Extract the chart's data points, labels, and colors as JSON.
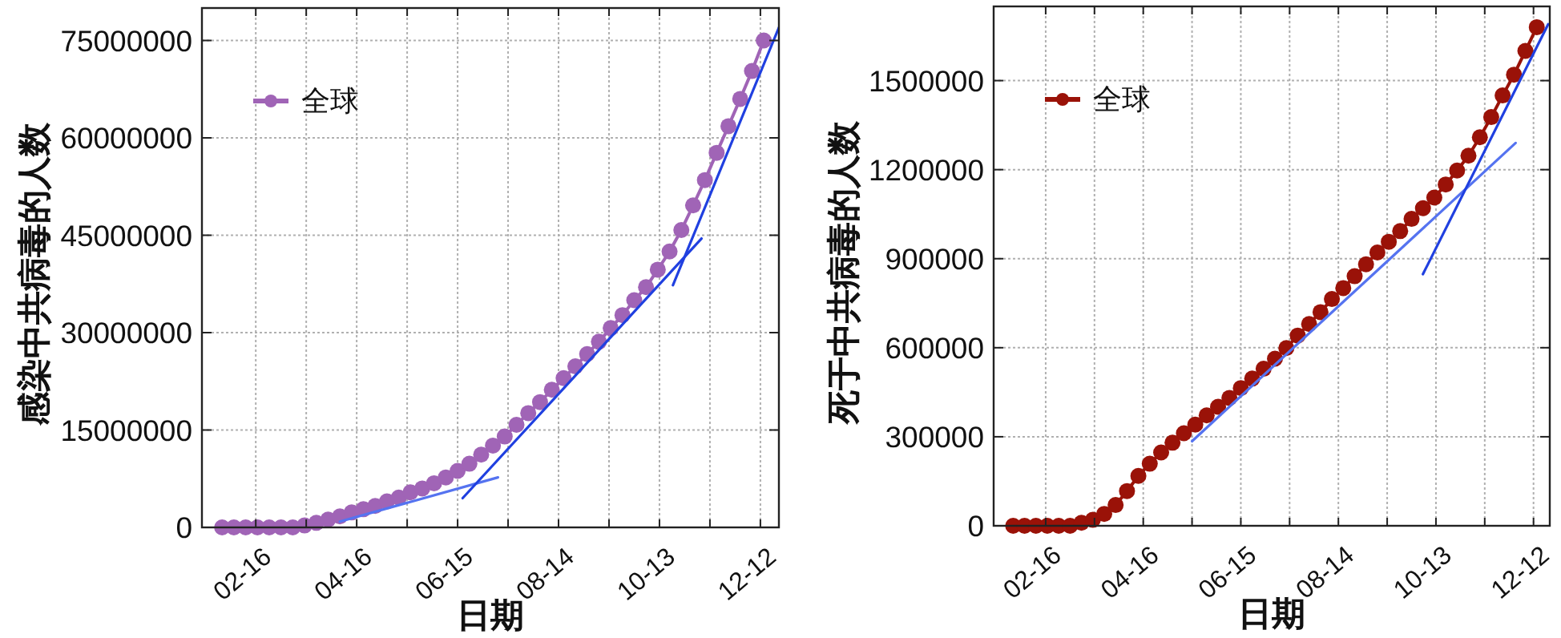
{
  "chart_data": [
    {
      "type": "line",
      "xlabel": "日期",
      "ylabel": "感染中共病毒的人数",
      "xlim": [
        "--01-15",
        "--12-23"
      ],
      "ylim": [
        0,
        80000000
      ],
      "xticks": [
        {
          "value": "--02-16",
          "label": "02-16"
        },
        {
          "value": "--03-17",
          "label": null
        },
        {
          "value": "--04-16",
          "label": "04-16"
        },
        {
          "value": "--05-16",
          "label": null
        },
        {
          "value": "--06-15",
          "label": "06-15"
        },
        {
          "value": "--07-15",
          "label": null
        },
        {
          "value": "--08-14",
          "label": "08-14"
        },
        {
          "value": "--09-13",
          "label": null
        },
        {
          "value": "--10-13",
          "label": "10-13"
        },
        {
          "value": "--11-12",
          "label": null
        },
        {
          "value": "--12-12",
          "label": "12-12"
        }
      ],
      "yticks": [
        0,
        15000000,
        30000000,
        45000000,
        60000000,
        75000000
      ],
      "grid": true,
      "legend": "top left",
      "line_style": "solid",
      "series": [
        {
          "name": "全球",
          "color": "#a064b6",
          "marker": "circle",
          "x": [
            "--01-27",
            "--02-03",
            "--02-10",
            "--02-17",
            "--02-24",
            "--03-02",
            "--03-09",
            "--03-16",
            "--03-23",
            "--03-30",
            "--04-06",
            "--04-13",
            "--04-20",
            "--04-27",
            "--05-04",
            "--05-11",
            "--05-18",
            "--05-25",
            "--06-01",
            "--06-08",
            "--06-15",
            "--06-22",
            "--06-29",
            "--07-06",
            "--07-13",
            "--07-20",
            "--07-27",
            "--08-03",
            "--08-10",
            "--08-17",
            "--08-24",
            "--08-31",
            "--09-07",
            "--09-14",
            "--09-21",
            "--09-28",
            "--10-05",
            "--10-12",
            "--10-19",
            "--10-26",
            "--11-02",
            "--11-09",
            "--11-16",
            "--11-23",
            "--11-30",
            "--12-07",
            "--12-14"
          ],
          "values": [
            0,
            0,
            0,
            0,
            0,
            0,
            0,
            300000,
            700000,
            1200000,
            1700000,
            2300000,
            2800000,
            3300000,
            4000000,
            4600000,
            5400000,
            6000000,
            6800000,
            7700000,
            8700000,
            9800000,
            11200000,
            12600000,
            14000000,
            15800000,
            17600000,
            19300000,
            21200000,
            23000000,
            24800000,
            26700000,
            28600000,
            30700000,
            32700000,
            35000000,
            37000000,
            39700000,
            42500000,
            45800000,
            49600000,
            53500000,
            57700000,
            61800000,
            66000000,
            70300000,
            75000000
          ]
        },
        {
          "color": "#5573f0",
          "marker": "none",
          "x": [
            "--04-06",
            "--07-09"
          ],
          "values": [
            900000,
            7700000
          ]
        },
        {
          "color": "#2040e0",
          "marker": "none",
          "x": [
            "--06-18",
            "--11-07"
          ],
          "values": [
            4500000,
            44500000
          ]
        },
        {
          "color": "#2040e0",
          "marker": "none",
          "x": [
            "--10-21",
            "--12-23"
          ],
          "values": [
            37300000,
            77000000
          ]
        }
      ]
    },
    {
      "type": "line",
      "xlabel": "日期",
      "ylabel": "死于中共病毒的人数",
      "xlim": [
        "--01-15",
        "--12-22"
      ],
      "ylim": [
        0,
        1750000
      ],
      "xticks": [
        {
          "value": "--02-16",
          "label": "02-16"
        },
        {
          "value": "--03-17",
          "label": null
        },
        {
          "value": "--04-16",
          "label": "04-16"
        },
        {
          "value": "--05-16",
          "label": null
        },
        {
          "value": "--06-15",
          "label": "06-15"
        },
        {
          "value": "--07-15",
          "label": null
        },
        {
          "value": "--08-14",
          "label": "08-14"
        },
        {
          "value": "--09-13",
          "label": null
        },
        {
          "value": "--10-13",
          "label": "10-13"
        },
        {
          "value": "--11-12",
          "label": null
        },
        {
          "value": "--12-12",
          "label": "12-12"
        }
      ],
      "yticks": [
        0,
        300000,
        600000,
        900000,
        1200000,
        1500000
      ],
      "grid": true,
      "legend": "top left",
      "line_style": "solid",
      "series": [
        {
          "name": "全球",
          "color": "#9a1208",
          "marker": "circle",
          "x": [
            "--01-27",
            "--02-03",
            "--02-10",
            "--02-17",
            "--02-24",
            "--03-02",
            "--03-09",
            "--03-16",
            "--03-23",
            "--03-30",
            "--04-06",
            "--04-13",
            "--04-20",
            "--04-27",
            "--05-04",
            "--05-11",
            "--05-18",
            "--05-25",
            "--06-01",
            "--06-08",
            "--06-15",
            "--06-22",
            "--06-29",
            "--07-06",
            "--07-13",
            "--07-20",
            "--07-27",
            "--08-03",
            "--08-10",
            "--08-17",
            "--08-24",
            "--08-31",
            "--09-07",
            "--09-14",
            "--09-21",
            "--09-28",
            "--10-05",
            "--10-12",
            "--10-19",
            "--10-26",
            "--11-02",
            "--11-09",
            "--11-16",
            "--11-23",
            "--11-30",
            "--12-07",
            "--12-14"
          ],
          "values": [
            0,
            0,
            0,
            0,
            0,
            0,
            10000,
            20000,
            40000,
            70000,
            117000,
            168000,
            209000,
            247000,
            280000,
            312000,
            341000,
            372000,
            401000,
            431000,
            464000,
            496000,
            529000,
            563000,
            599000,
            641000,
            680000,
            720000,
            764000,
            801000,
            841000,
            881000,
            921000,
            957000,
            993000,
            1034000,
            1070000,
            1106000,
            1150000,
            1197000,
            1247000,
            1309000,
            1377000,
            1450000,
            1520000,
            1600000,
            1680000
          ]
        },
        {
          "color": "#5573f0",
          "marker": "none",
          "x": [
            "--05-16",
            "--12-01"
          ],
          "values": [
            285000,
            1290000
          ]
        },
        {
          "color": "#2040e0",
          "marker": "none",
          "x": [
            "--10-05",
            "--12-21"
          ],
          "values": [
            848000,
            1690000
          ]
        }
      ]
    }
  ]
}
